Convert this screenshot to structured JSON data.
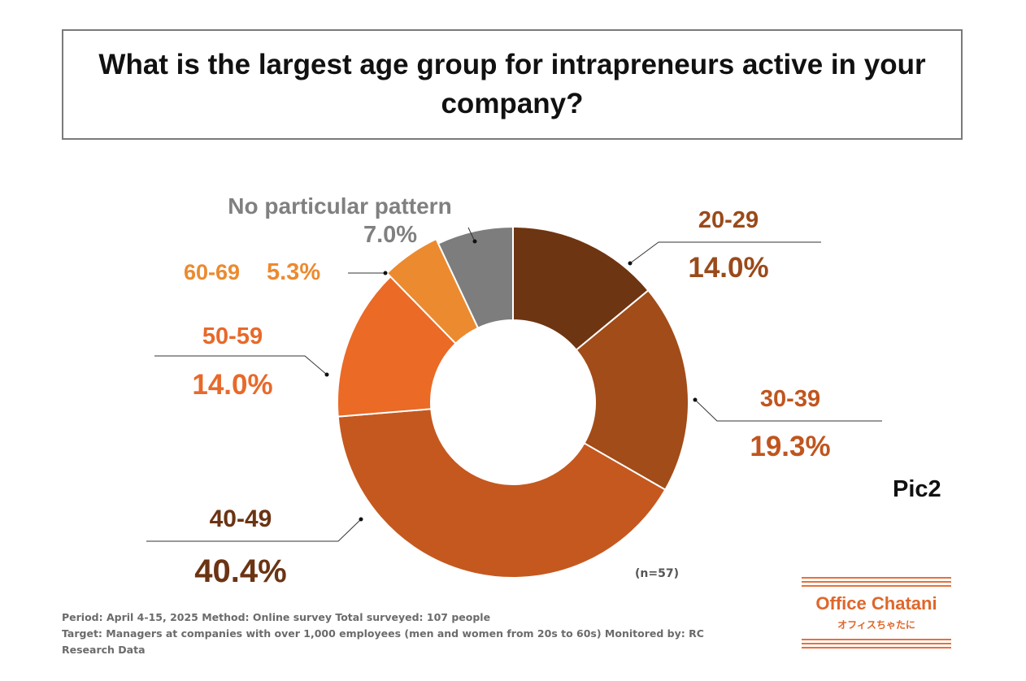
{
  "title": "What is the largest age group for intrapreneurs active in your company?",
  "pic_label": "Pic2",
  "chart_data": {
    "type": "pie",
    "donut": true,
    "title": "What is the largest age group for intrapreneurs active in your company?",
    "n_label": "(n=57)",
    "start": "12 o'clock, clockwise",
    "slices": [
      {
        "label": "20-29",
        "value": 14.0,
        "value_label": "14.0%",
        "color": "#6e3512",
        "text_color": "#9a4a1a"
      },
      {
        "label": "30-39",
        "value": 19.3,
        "value_label": "19.3%",
        "color": "#a24c19",
        "text_color": "#c0551e"
      },
      {
        "label": "40-49",
        "value": 40.4,
        "value_label": "40.4%",
        "color": "#c5581f",
        "text_color": "#6b3413"
      },
      {
        "label": "50-59",
        "value": 14.0,
        "value_label": "14.0%",
        "color": "#ea6a26",
        "text_color": "#e8692a"
      },
      {
        "label": "60-69",
        "value": 5.3,
        "value_label": "5.3%",
        "color": "#ec8a2f",
        "text_color": "#ec8a2f"
      },
      {
        "label": "No particular pattern",
        "value": 7.0,
        "value_label": "7.0%",
        "color": "#7d7d7d",
        "text_color": "#808080"
      }
    ]
  },
  "footer": {
    "line1": "Period: April 4-15, 2025 Method: Online survey Total surveyed: 107 people",
    "line2": "Target: Managers at companies with over 1,000 employees (men and women from 20s to 60s) Monitored by: RC",
    "line3": "Research Data"
  },
  "logo": {
    "name": "Office Chatani",
    "name_jp": "オフィスちゃたに",
    "color": "#e0662a"
  }
}
